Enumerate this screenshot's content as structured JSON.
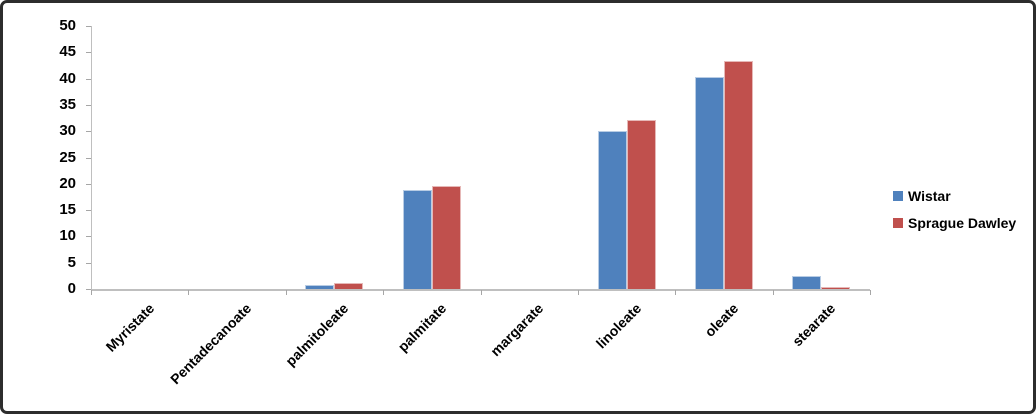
{
  "chart_data": {
    "type": "bar",
    "title": "",
    "xlabel": "",
    "ylabel": "",
    "categories": [
      "Myristate",
      "Pentadecanoate",
      "palmitoleate",
      "palmitate",
      "margarate",
      "linoleate",
      "oleate",
      "stearate"
    ],
    "series": [
      {
        "name": "Wistar",
        "color": "#4F81BD",
        "edge_color": "#B8CCE4",
        "values": [
          0,
          0,
          0.7,
          18.9,
          0,
          30.0,
          40.3,
          2.5
        ]
      },
      {
        "name": "Sprague Dawley",
        "color": "#C0504D",
        "edge_color": "#E6B8B7",
        "values": [
          0,
          0,
          1.2,
          19.6,
          0,
          32.2,
          43.3,
          0.4
        ]
      }
    ],
    "ylim": [
      0,
      50
    ],
    "ytick_values": [
      50,
      45,
      40,
      35,
      30,
      25,
      20,
      15,
      10,
      5,
      0
    ],
    "ytick_labels": [
      "50",
      "45",
      "40",
      "35",
      "30",
      "25",
      "20",
      "15",
      "10",
      "5",
      "0"
    ],
    "grid": false,
    "legend_position": "right",
    "axis_color": "#BFBFBF",
    "tick_color": "#A6A6A6",
    "text_color": "#000000"
  }
}
